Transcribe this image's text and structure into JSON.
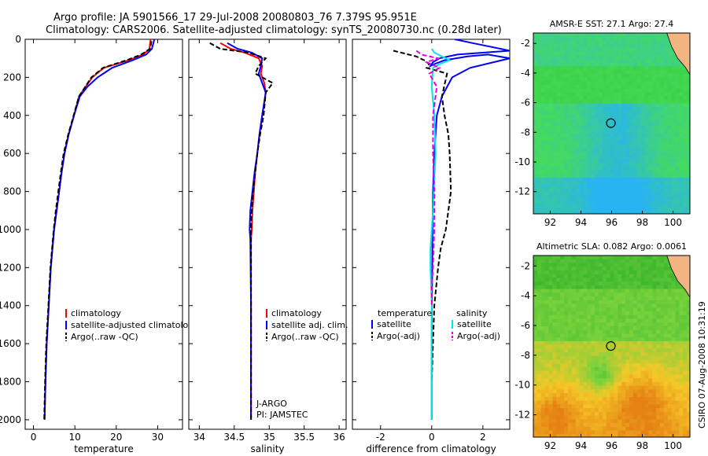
{
  "title_line1": "Argo profile: JA 5901566_17 29-Jul-2008 20080803_76 7.379S 95.951E",
  "title_line2": "Climatology: CARS2006. Satellite-adjusted climatology: synTS_20080730.nc (0.28d later)",
  "side_label": "CSIRO 07-Aug-2008 10:31:19",
  "colors": {
    "red": "#ff0000",
    "blue": "#0000ff",
    "black": "#000000",
    "cyan": "#00e5e5",
    "magenta": "#e600e6"
  },
  "chart_data": [
    {
      "id": "temperature",
      "type": "line",
      "xlabel": "temperature",
      "xlim": [
        -2,
        36
      ],
      "xticks": [
        0,
        10,
        20,
        30
      ],
      "ylim": [
        2050,
        0
      ],
      "yticks": [
        0,
        200,
        400,
        600,
        800,
        1000,
        1200,
        1400,
        1600,
        1800,
        2000
      ],
      "legend": [
        "climatology",
        "satellite-adjusted climatology",
        "Argo(..raw -QC)"
      ],
      "series": [
        {
          "key": "climatology",
          "color": "red",
          "dash": false,
          "x": [
            28.3,
            28.0,
            26.5,
            23.0,
            17.0,
            14.2,
            12.6,
            11.0,
            9.8,
            8.5,
            7.5,
            6.8,
            6.2,
            5.6,
            5.0,
            4.6,
            4.2,
            3.7,
            3.2,
            2.9,
            2.7
          ],
          "y": [
            0,
            50,
            80,
            110,
            150,
            200,
            250,
            300,
            400,
            500,
            600,
            700,
            800,
            900,
            1000,
            1100,
            1200,
            1400,
            1600,
            1800,
            2000
          ]
        },
        {
          "key": "satellite",
          "color": "blue",
          "dash": false,
          "x": [
            29.2,
            28.6,
            27.2,
            24.0,
            19.0,
            15.5,
            13.0,
            11.2,
            9.8,
            8.5,
            7.5,
            6.8,
            6.2,
            5.6,
            5.0,
            4.6,
            4.2,
            3.7,
            3.2,
            2.9,
            2.7
          ],
          "y": [
            0,
            50,
            80,
            110,
            150,
            200,
            250,
            300,
            400,
            500,
            600,
            700,
            800,
            900,
            1000,
            1100,
            1200,
            1400,
            1600,
            1800,
            2000
          ]
        },
        {
          "key": "argo",
          "color": "black",
          "dash": true,
          "x": [
            28.5,
            28.2,
            26.0,
            22.5,
            16.8,
            14.0,
            12.5,
            11.0,
            9.7,
            8.4,
            7.3,
            6.6,
            6.0,
            5.4,
            4.9,
            4.5,
            4.1,
            3.6,
            3.1,
            2.8,
            2.6
          ],
          "y": [
            10,
            50,
            80,
            110,
            150,
            200,
            250,
            300,
            400,
            500,
            600,
            700,
            800,
            900,
            1000,
            1100,
            1200,
            1400,
            1600,
            1800,
            2000
          ]
        }
      ]
    },
    {
      "id": "salinity",
      "type": "line",
      "xlabel": "salinity",
      "xlim": [
        33.85,
        36.1
      ],
      "xticks": [
        34,
        34.5,
        35,
        35.5,
        36
      ],
      "ylim": [
        2050,
        0
      ],
      "legend": [
        "climatology",
        "satellite adj. clim.",
        "Argo(..raw -QC)"
      ],
      "annotation": [
        "J-ARGO",
        "PI: JAMSTEC"
      ],
      "series": [
        {
          "key": "climatology",
          "color": "red",
          "dash": false,
          "x": [
            34.3,
            34.45,
            34.65,
            34.85,
            34.9,
            34.88,
            34.93,
            34.95,
            34.9,
            34.86,
            34.83,
            34.8,
            34.78,
            34.76,
            34.75,
            34.74,
            34.74,
            34.74,
            34.74
          ],
          "y": [
            20,
            50,
            70,
            100,
            140,
            180,
            230,
            280,
            400,
            500,
            600,
            700,
            800,
            900,
            1000,
            1050,
            1400,
            1700,
            2000
          ]
        },
        {
          "key": "satellite",
          "color": "blue",
          "dash": false,
          "x": [
            34.4,
            34.55,
            34.75,
            34.9,
            34.88,
            34.85,
            34.9,
            34.95,
            34.9,
            34.86,
            34.83,
            34.79,
            34.76,
            34.73,
            34.72,
            34.73,
            34.74,
            34.74,
            34.74
          ],
          "y": [
            20,
            50,
            70,
            100,
            140,
            180,
            230,
            280,
            400,
            500,
            600,
            700,
            800,
            900,
            1000,
            1050,
            1400,
            1700,
            2000
          ]
        },
        {
          "key": "argo",
          "color": "black",
          "dash": true,
          "x": [
            34.15,
            34.3,
            34.7,
            34.95,
            34.85,
            34.8,
            35.05,
            34.95,
            34.92,
            34.87,
            34.83,
            34.8,
            34.77,
            34.75,
            34.74,
            34.74,
            34.74,
            34.74
          ],
          "y": [
            20,
            50,
            70,
            100,
            140,
            180,
            230,
            280,
            400,
            500,
            600,
            700,
            800,
            900,
            1000,
            1400,
            1700,
            2000
          ]
        }
      ]
    },
    {
      "id": "difference",
      "type": "line",
      "xlabel": "difference from climatology",
      "xlim": [
        -3.1,
        3.05
      ],
      "xticks": [
        -2,
        0,
        2
      ],
      "ylim": [
        2050,
        0
      ],
      "legend_temperature_title": "temperature",
      "legend_salinity_title": "salinity",
      "legend_temperature": [
        "satellite",
        "Argo(-adj)"
      ],
      "legend_salinity": [
        "satellite",
        "Argo(-adj)"
      ],
      "series": [
        {
          "key": "temp_satellite",
          "color": "blue",
          "dash": false,
          "x": [
            0.9,
            1.6,
            3.05,
            1.0,
            0.3,
            0.05,
            -0.05,
            0.1,
            0.5,
            1.4,
            2.2,
            3.05,
            1.5,
            0.8,
            0.4,
            0.2,
            0.1,
            0.05,
            0.03,
            0.02,
            0.0,
            0.0,
            0.0
          ],
          "y": [
            0,
            20,
            60,
            80,
            100,
            120,
            140,
            130,
            110,
            90,
            80,
            100,
            150,
            200,
            300,
            400,
            600,
            800,
            1000,
            1200,
            1500,
            1800,
            2000
          ]
        },
        {
          "key": "temp_argo",
          "color": "black",
          "dash": true,
          "x": [
            -1.5,
            -0.6,
            -0.3,
            -0.1,
            -0.2,
            0.6,
            0.4,
            0.5,
            0.65,
            0.7,
            0.75,
            0.65,
            0.55,
            0.35,
            0.25,
            0.1,
            0.05,
            0.0
          ],
          "y": [
            60,
            90,
            110,
            130,
            150,
            180,
            300,
            400,
            500,
            600,
            800,
            900,
            1000,
            1100,
            1200,
            1400,
            1600,
            1800
          ]
        },
        {
          "key": "sal_satellite",
          "color": "cyan",
          "dash": false,
          "x": [
            0.0,
            0.1,
            0.4,
            0.7,
            0.3,
            0.05,
            0.0,
            0.1,
            0.15,
            0.08,
            0.05,
            0.0,
            -0.05,
            -0.05,
            0.0,
            0.0,
            0.0
          ],
          "y": [
            50,
            70,
            90,
            110,
            130,
            150,
            250,
            400,
            600,
            800,
            900,
            1000,
            1100,
            1200,
            1400,
            1800,
            2000
          ]
        },
        {
          "key": "sal_argo",
          "color": "magenta",
          "dash": true,
          "x": [
            -0.6,
            -0.4,
            0.25,
            -0.2,
            0.3,
            -0.1,
            0.2,
            0.05,
            0.05,
            0.1,
            0.1,
            0.05,
            0.0,
            0.0
          ],
          "y": [
            60,
            80,
            100,
            120,
            150,
            180,
            250,
            400,
            600,
            800,
            1000,
            1200,
            1300,
            1400
          ]
        }
      ]
    },
    {
      "id": "sst_map",
      "type": "heatmap",
      "title": "AMSR-E SST: 27.1 Argo: 27.4",
      "xlim": [
        90.9,
        101.1
      ],
      "ylim": [
        -13.5,
        -1.3
      ],
      "xticks": [
        92,
        94,
        96,
        98,
        100
      ],
      "yticks": [
        -2,
        -4,
        -6,
        -8,
        -10,
        -12
      ],
      "marker": {
        "x": 95.95,
        "y": -7.38
      }
    },
    {
      "id": "sla_map",
      "type": "heatmap",
      "title": "Altimetric SLA: 0.082 Argo: 0.0061",
      "xlim": [
        90.9,
        101.1
      ],
      "ylim": [
        -13.5,
        -1.3
      ],
      "xticks": [
        92,
        94,
        96,
        98,
        100
      ],
      "yticks": [
        -2,
        -4,
        -6,
        -8,
        -10,
        -12
      ],
      "marker": {
        "x": 95.95,
        "y": -7.38
      }
    }
  ]
}
